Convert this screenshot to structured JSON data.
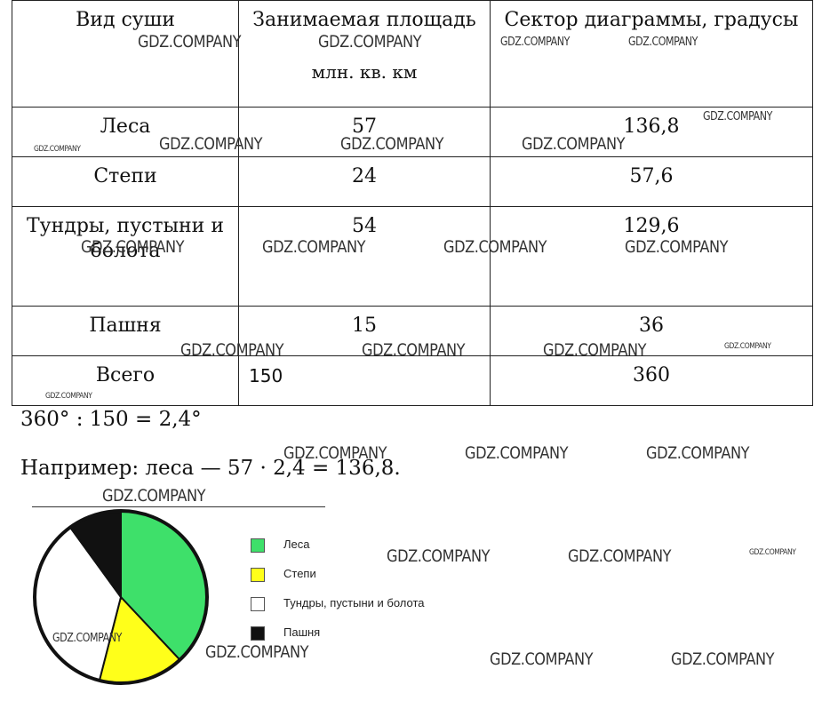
{
  "table": {
    "headers": [
      "Вид суши",
      "Занимаемая площадь",
      "Сектор диаграммы, градусы"
    ],
    "header_sub": "млн. кв. км",
    "rows": [
      {
        "name": "Леса",
        "area": "57",
        "degrees": "136,8"
      },
      {
        "name": "Степи",
        "area": "24",
        "degrees": "57,6"
      },
      {
        "name": "Тундры, пустыни и болота",
        "area": "54",
        "degrees": "129,6"
      },
      {
        "name": "Пашня",
        "area": "15",
        "degrees": "36"
      },
      {
        "name": "Всего",
        "area": "150",
        "degrees": "360"
      }
    ]
  },
  "formula_1": "360° : 150 = 2,4°",
  "formula_2": "Например: леса — 57 · 2,4 = 136,8.",
  "chart_data": {
    "type": "pie",
    "slices": [
      {
        "label": "Леса",
        "value": 136.8,
        "color": "#3ee06a"
      },
      {
        "label": "Степи",
        "value": 57.6,
        "color": "#ffff1a"
      },
      {
        "label": "Тундры, пустыни и болота",
        "value": 129.6,
        "color": "#ffffff"
      },
      {
        "label": "Пашня",
        "value": 36,
        "color": "#111111"
      }
    ],
    "legend": [
      "Леса",
      "Степи",
      "Тундры, пустыни и болота",
      "Пашня"
    ],
    "legend_position": "right"
  },
  "watermark": "GDZ.COMPANY"
}
